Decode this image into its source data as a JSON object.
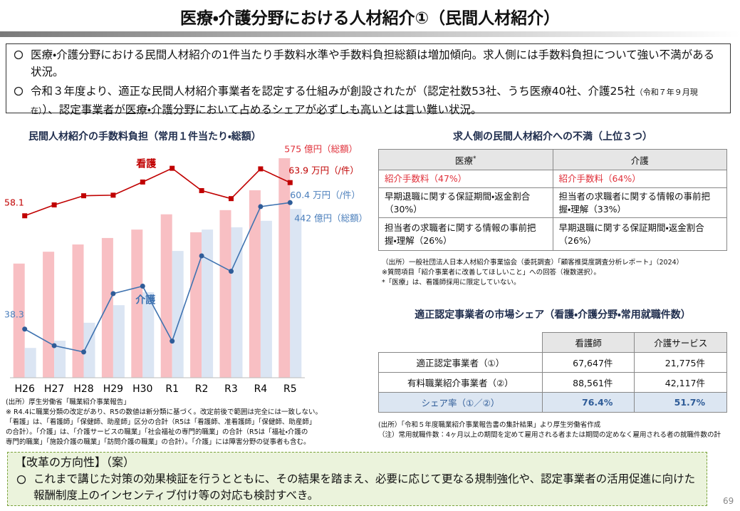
{
  "header": {
    "title": "医療・介護分野における人材紹介①（民間人材紹介）"
  },
  "summary": {
    "items": [
      {
        "parts": [
          "医療・介護分野における民間人材紹介の1件当たり手数料水準や手数料負担総額は増加傾向。求人側には手数料負担について強い不満がある状況。"
        ]
      },
      {
        "parts": [
          "令和３年度より、適正な民間人材紹介事業者を認定する仕組みが創設されたが（認定社数53社、うち医療40社、介護25社",
          "（令和７年９月現在）",
          "）、認定事業者が医療・介護分野において占めるシェアが必ずしも高いとは言い難い状況。"
        ]
      }
    ]
  },
  "chart_data": {
    "type": "bar",
    "title": "民間人材紹介の手数料負担（常用１件当たり・総額）",
    "categories": [
      "H26",
      "H27",
      "H28",
      "H29",
      "H30",
      "R1",
      "R2",
      "R3",
      "R4",
      "R5"
    ],
    "ylim": [
      0,
      616
    ],
    "y2lim": [
      29.8,
      70.9
    ],
    "series": [
      {
        "type": "bar",
        "color": "#f8bfc3",
        "values": [
          299,
          330,
          349,
          366,
          388,
          428,
          381,
          439,
          491,
          575
        ],
        "value_labels": [
          null,
          null,
          null,
          null,
          null,
          null,
          null,
          null,
          null,
          "575 億円（総額）"
        ]
      },
      {
        "type": "bar",
        "color": "#dbe5f3",
        "values": [
          78,
          97,
          144,
          190,
          224,
          332,
          388,
          394,
          411,
          442
        ],
        "value_labels": [
          null,
          null,
          null,
          null,
          null,
          null,
          null,
          null,
          null,
          "442 億円（総額）"
        ]
      },
      {
        "type": "line",
        "axis": "y2",
        "name": "看護",
        "color": "#c00000",
        "values": [
          58.1,
          60.0,
          61.6,
          61.7,
          64.0,
          66.4,
          62.5,
          61.1,
          66.3,
          63.9
        ],
        "value_labels": [
          "58.1",
          null,
          null,
          null,
          null,
          null,
          null,
          null,
          null,
          "63.9 万円（/件）"
        ]
      },
      {
        "type": "line",
        "axis": "y2",
        "name": "介護",
        "color": "#3e72b0",
        "values": [
          38.3,
          35.4,
          34.3,
          44.5,
          45.8,
          36.2,
          51.1,
          48.4,
          59.7,
          60.4
        ],
        "value_labels": [
          "38.3",
          null,
          null,
          null,
          null,
          null,
          null,
          null,
          null,
          "60.4 万円（/件）"
        ]
      }
    ],
    "notes": [
      "(出所）厚生労働省「職業紹介事業報告」",
      "※ R4.4に職業分類の改定があり、R5の数値は新分類に基づく。改定前後で範囲は完全には一致しない。",
      "「看護」は、「看護師」「保健師、助産師」区分の合計（R5は「看護師、准看護師」「保健師、助産師」",
      "の合計）。「介護」は、「介護サービスの職業」「社会福祉の専門的職業」の合計（R5は「福祉・介護の",
      "専門的職業」「施設介護の職業」「訪問介護の職業」の合計）。「介護」には障害分野の従事者も含む。"
    ]
  },
  "complaints": {
    "title": "求人側の民間人材紹介への不満（上位３つ）",
    "header": [
      "医療",
      "介護"
    ],
    "header_mark": "*",
    "rows": [
      [
        "紹介手数料（47%）",
        "紹介手数料（64%）"
      ],
      [
        "早期退職に関する保証期間・返金割合（30%）",
        "担当者の求職者に関する情報の事前把握・理解（33%）"
      ],
      [
        "担当者の求職者に関する情報の事前把握・理解（26%）",
        "早期退職に関する保証期間・返金割合（26%）"
      ]
    ],
    "notes": [
      "（出所）一般社団法人日本人材紹介事業協会（委託調査）「顧客推奨度調査分析レポート」（2024）",
      "※質問項目「紹介事業者に改善してほしいこと」への回答（複数選択）。",
      "*「医療」は、看護師採用に限定していない。"
    ]
  },
  "share": {
    "title": "適正認定事業者の市場シェア（看護・介護分野・常用就職件数）",
    "header": [
      "看護師",
      "介護サービス"
    ],
    "rows": [
      [
        "適正認定事業者（①）",
        "67,647件",
        "21,775件"
      ],
      [
        "有料職業紹介事業者（②）",
        "88,561件",
        "42,117件"
      ],
      [
        "シェア率（①／②）",
        "76.4%",
        "51.7%"
      ]
    ],
    "notes": [
      "(出所）「令和５年度職業紹介事業報告書の集計結果」より厚生労働省作成",
      "（注）常用就職件数：4ヶ月以上の期間を定めて雇用される者または期間の定めなく雇用される者の就職件数の計"
    ]
  },
  "reform": {
    "title": "【改革の方向性】（案）",
    "text": "これまで講じた対策の効果検証を行うとともに、その結果を踏まえ、必要に応じて更なる規制強化や、認定事業者の活用促進に向けた報酬制度上のインセンティブ付け等の対応も検討すべき。"
  },
  "page_number": "69"
}
